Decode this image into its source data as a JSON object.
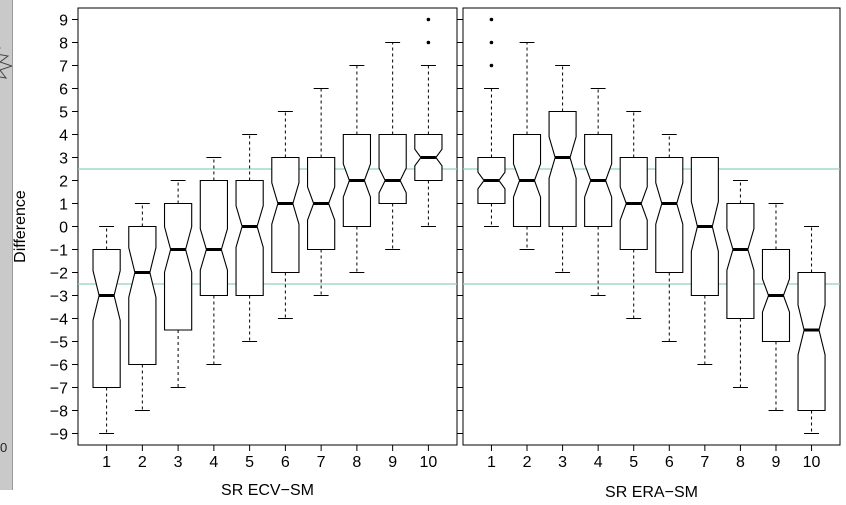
{
  "chart_data": [
    {
      "type": "boxplot",
      "notched": true,
      "xlabel": "SR ECV−SM",
      "ylabel": "Difference",
      "ylim": [
        -9.5,
        9.5
      ],
      "yticks": [
        -9,
        -8,
        -7,
        -6,
        -5,
        -4,
        -3,
        -2,
        -1,
        0,
        1,
        2,
        3,
        4,
        5,
        6,
        7,
        8,
        9
      ],
      "categories": [
        "1",
        "2",
        "3",
        "4",
        "5",
        "6",
        "7",
        "8",
        "9",
        "10"
      ],
      "reference_lines": [
        2.5,
        -2.5
      ],
      "reference_color": "#8fd3b8",
      "boxes": [
        {
          "category": "1",
          "whisker_low": -9,
          "q1": -7,
          "median": -3,
          "q3": -1,
          "whisker_high": 0,
          "outliers": []
        },
        {
          "category": "2",
          "whisker_low": -8,
          "q1": -6,
          "median": -2,
          "q3": 0,
          "whisker_high": 1,
          "outliers": []
        },
        {
          "category": "3",
          "whisker_low": -7,
          "q1": -4.5,
          "median": -1,
          "q3": 1,
          "whisker_high": 2,
          "outliers": []
        },
        {
          "category": "4",
          "whisker_low": -6,
          "q1": -3,
          "median": -1,
          "q3": 2,
          "whisker_high": 3,
          "outliers": []
        },
        {
          "category": "5",
          "whisker_low": -5,
          "q1": -3,
          "median": 0,
          "q3": 2,
          "whisker_high": 4,
          "outliers": []
        },
        {
          "category": "6",
          "whisker_low": -4,
          "q1": -2,
          "median": 1,
          "q3": 3,
          "whisker_high": 5,
          "outliers": []
        },
        {
          "category": "7",
          "whisker_low": -3,
          "q1": -1,
          "median": 1,
          "q3": 3,
          "whisker_high": 6,
          "outliers": []
        },
        {
          "category": "8",
          "whisker_low": -2,
          "q1": 0,
          "median": 2,
          "q3": 4,
          "whisker_high": 7,
          "outliers": []
        },
        {
          "category": "9",
          "whisker_low": -1,
          "q1": 1,
          "median": 2,
          "q3": 4,
          "whisker_high": 8,
          "outliers": []
        },
        {
          "category": "10",
          "whisker_low": 0,
          "q1": 2,
          "median": 3,
          "q3": 4,
          "whisker_high": 7,
          "outliers": [
            8,
            9
          ]
        }
      ]
    },
    {
      "type": "boxplot",
      "notched": true,
      "xlabel": "SR ERA−SM",
      "ylabel": "",
      "ylim": [
        -9.5,
        9.5
      ],
      "categories": [
        "1",
        "2",
        "3",
        "4",
        "5",
        "6",
        "7",
        "8",
        "9",
        "10"
      ],
      "reference_lines": [
        2.5,
        -2.5
      ],
      "reference_color": "#8fd3b8",
      "boxes": [
        {
          "category": "1",
          "whisker_low": 0,
          "q1": 1,
          "median": 2,
          "q3": 3,
          "whisker_high": 6,
          "outliers": [
            7,
            8,
            9
          ]
        },
        {
          "category": "2",
          "whisker_low": -1,
          "q1": 0,
          "median": 2,
          "q3": 4,
          "whisker_high": 8,
          "outliers": []
        },
        {
          "category": "3",
          "whisker_low": -2,
          "q1": 0,
          "median": 3,
          "q3": 5,
          "whisker_high": 7,
          "outliers": []
        },
        {
          "category": "4",
          "whisker_low": -3,
          "q1": 0,
          "median": 2,
          "q3": 4,
          "whisker_high": 6,
          "outliers": []
        },
        {
          "category": "5",
          "whisker_low": -4,
          "q1": -1,
          "median": 1,
          "q3": 3,
          "whisker_high": 5,
          "outliers": []
        },
        {
          "category": "6",
          "whisker_low": -5,
          "q1": -2,
          "median": 1,
          "q3": 3,
          "whisker_high": 4,
          "outliers": []
        },
        {
          "category": "7",
          "whisker_low": -6,
          "q1": -3,
          "median": 0,
          "q3": 3,
          "whisker_high": 3,
          "outliers": []
        },
        {
          "category": "8",
          "whisker_low": -7,
          "q1": -4,
          "median": -1,
          "q3": 1,
          "whisker_high": 2,
          "outliers": []
        },
        {
          "category": "9",
          "whisker_low": -8,
          "q1": -5,
          "median": -3,
          "q3": -1,
          "whisker_high": 1,
          "outliers": []
        },
        {
          "category": "10",
          "whisker_low": -9,
          "q1": -8,
          "median": -4.5,
          "q3": -2,
          "whisker_high": 0,
          "outliers": []
        }
      ]
    }
  ],
  "sidebar": {
    "marker_text": "0"
  }
}
